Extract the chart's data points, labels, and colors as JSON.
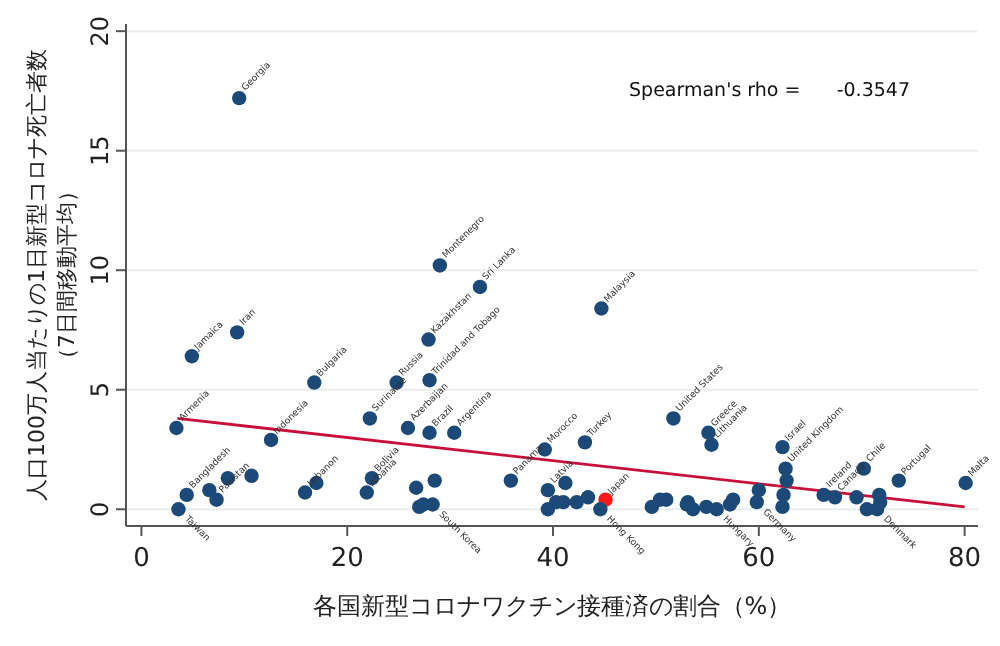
{
  "chart_data": {
    "type": "scatter",
    "xlabel": "各国新型コロナワクチン接種済の割合（%）",
    "ylabel": "人口100万人当たりの1日新型コロナ死亡者数（7日間移動平均）",
    "xlim": [
      -1.5,
      81.3
    ],
    "ylim": [
      -0.7,
      20.3
    ],
    "xticks": [
      0,
      20,
      40,
      60,
      80
    ],
    "yticks": [
      0,
      5,
      10,
      15,
      20
    ],
    "grid": "y",
    "annotations": [
      "Spearman's rho =      -0.3547",
      {
        "text": "Georgia",
        "x": 9.5,
        "y": 17.25
      },
      {
        "text": "Montenegro",
        "x": 29.0,
        "y": 10.25
      },
      {
        "text": "Sri Lanka",
        "x": 32.9,
        "y": 9.33
      },
      {
        "text": "Iran",
        "x": 9.3,
        "y": 7.44
      },
      {
        "text": "Jamaica",
        "x": 4.9,
        "y": 6.39
      },
      {
        "text": "Malaysia",
        "x": 44.7,
        "y": 8.39
      },
      {
        "text": "Kazakhstan",
        "x": 27.9,
        "y": 7.08
      },
      {
        "text": "Trinidad and Tobago",
        "x": 28.0,
        "y": 5.36
      },
      {
        "text": "Bulgaria",
        "x": 16.8,
        "y": 5.28
      },
      {
        "text": "Russia",
        "x": 24.8,
        "y": 5.31
      },
      {
        "text": "Suriname",
        "x": 22.2,
        "y": 3.83
      },
      {
        "text": "Armenia",
        "x": 3.4,
        "y": 3.44
      },
      {
        "text": "Indonesia",
        "x": 12.6,
        "y": 2.86
      },
      {
        "text": "Azerbaijan",
        "x": 25.9,
        "y": 3.44
      },
      {
        "text": "Brazil",
        "x": 28.0,
        "y": 3.19
      },
      {
        "text": "Argentina",
        "x": 30.4,
        "y": 3.22
      },
      {
        "text": "Taiwan",
        "x": 3.6,
        "y": 0.0
      },
      {
        "text": "Bangladesh",
        "x": 4.4,
        "y": 0.61
      },
      {
        "text": "Pakistan",
        "x": 7.3,
        "y": 0.42
      },
      {
        "text": "Lebanon",
        "x": 15.9,
        "y": 0.69
      },
      {
        "text": "Bolivia",
        "x": 22.4,
        "y": 1.31
      },
      {
        "text": "Albania",
        "x": 21.9,
        "y": 0.69
      },
      {
        "text": "South Korea",
        "x": 28.3,
        "y": 0.19
      },
      {
        "text": "Panama",
        "x": 35.9,
        "y": 1.19
      },
      {
        "text": "Morocco",
        "x": 39.2,
        "y": 2.5
      },
      {
        "text": "Turkey",
        "x": 43.1,
        "y": 2.78
      },
      {
        "text": "Latvia",
        "x": 39.5,
        "y": 0.83
      },
      {
        "text": "Japan",
        "x": 45.1,
        "y": 0.36
      },
      {
        "text": "Hong Kong",
        "x": 44.6,
        "y": 0.0
      },
      {
        "text": "United States",
        "x": 51.7,
        "y": 3.83
      },
      {
        "text": "Greece",
        "x": 55.1,
        "y": 3.19
      },
      {
        "text": "Lithuania",
        "x": 55.4,
        "y": 2.72
      },
      {
        "text": "Hungary",
        "x": 55.9,
        "y": 0.0
      },
      {
        "text": "Germany",
        "x": 59.8,
        "y": 0.28
      },
      {
        "text": "Israel",
        "x": 62.3,
        "y": 2.58
      },
      {
        "text": "United Kingdom",
        "x": 62.6,
        "y": 1.72
      },
      {
        "text": "Ireland",
        "x": 66.3,
        "y": 0.64
      },
      {
        "text": "Canada",
        "x": 67.4,
        "y": 0.5
      },
      {
        "text": "Chile",
        "x": 70.2,
        "y": 1.72
      },
      {
        "text": "Denmark",
        "x": 71.5,
        "y": 0.0
      },
      {
        "text": "Portugal",
        "x": 73.6,
        "y": 1.17
      },
      {
        "text": "Malta",
        "x": 80.1,
        "y": 1.11
      }
    ],
    "series": [
      {
        "marker": "circle",
        "x": [
          9.5,
          29.0,
          32.9,
          9.3,
          4.9,
          44.7,
          27.9,
          28.0,
          16.8,
          24.8,
          22.2,
          3.4,
          12.6,
          25.9,
          28.0,
          30.4,
          3.6,
          4.4,
          6.6,
          7.3,
          8.4,
          10.7,
          15.9,
          17.0,
          22.4,
          21.9,
          26.7,
          27.0,
          28.5,
          27.4,
          28.3,
          35.9,
          39.2,
          43.1,
          39.5,
          39.5,
          40.3,
          41.0,
          41.2,
          42.3,
          43.4,
          45.1,
          44.6,
          49.6,
          50.4,
          51.0,
          51.7,
          53.1,
          53.6,
          53.0,
          54.9,
          55.9,
          57.2,
          57.5,
          60.0,
          59.8,
          55.1,
          55.4,
          62.3,
          62.6,
          62.7,
          62.4,
          62.3,
          66.3,
          67.4,
          70.2,
          69.5,
          71.7,
          71.8,
          70.5,
          71.5,
          73.6,
          80.1
        ],
        "values": [
          17.2,
          10.2,
          9.3,
          7.4,
          6.4,
          8.4,
          7.1,
          5.4,
          5.3,
          5.3,
          3.8,
          3.4,
          2.9,
          3.4,
          3.2,
          3.2,
          0.0,
          0.6,
          0.8,
          0.4,
          1.3,
          1.4,
          0.7,
          1.1,
          1.3,
          0.7,
          0.9,
          0.1,
          1.2,
          0.2,
          0.2,
          1.2,
          2.5,
          2.8,
          0.8,
          0.0,
          0.3,
          0.3,
          1.1,
          0.3,
          0.5,
          0.4,
          0.0,
          0.1,
          0.4,
          0.4,
          3.8,
          0.3,
          0.0,
          0.2,
          0.1,
          0.0,
          0.2,
          0.4,
          0.8,
          0.3,
          3.2,
          2.7,
          2.6,
          1.7,
          1.2,
          0.6,
          0.1,
          0.6,
          0.5,
          1.7,
          0.5,
          0.6,
          0.3,
          0.0,
          0.0,
          1.2,
          1.1
        ],
        "colors": [
          "#1b4a78",
          "#1b4a78",
          "#1b4a78",
          "#1b4a78",
          "#1b4a78",
          "#1b4a78",
          "#1b4a78",
          "#1b4a78",
          "#1b4a78",
          "#1b4a78",
          "#1b4a78",
          "#1b4a78",
          "#1b4a78",
          "#1b4a78",
          "#1b4a78",
          "#1b4a78",
          "#1b4a78",
          "#1b4a78",
          "#1b4a78",
          "#1b4a78",
          "#1b4a78",
          "#1b4a78",
          "#1b4a78",
          "#1b4a78",
          "#1b4a78",
          "#1b4a78",
          "#1b4a78",
          "#1b4a78",
          "#1b4a78",
          "#1b4a78",
          "#1b4a78",
          "#1b4a78",
          "#1b4a78",
          "#1b4a78",
          "#1b4a78",
          "#1b4a78",
          "#1b4a78",
          "#1b4a78",
          "#1b4a78",
          "#1b4a78",
          "#1b4a78",
          "#ff1a1a",
          "#1b4a78",
          "#1b4a78",
          "#1b4a78",
          "#1b4a78",
          "#1b4a78",
          "#1b4a78",
          "#1b4a78",
          "#1b4a78",
          "#1b4a78",
          "#1b4a78",
          "#1b4a78",
          "#1b4a78",
          "#1b4a78",
          "#1b4a78",
          "#1b4a78",
          "#1b4a78",
          "#1b4a78",
          "#1b4a78",
          "#1b4a78",
          "#1b4a78",
          "#1b4a78",
          "#1b4a78",
          "#1b4a78",
          "#1b4a78",
          "#1b4a78",
          "#1b4a78",
          "#1b4a78",
          "#1b4a78",
          "#1b4a78",
          "#1b4a78",
          "#1b4a78"
        ]
      },
      {
        "type": "line",
        "color": "#c8103a",
        "x": [
          3.5,
          80
        ],
        "values": [
          3.8,
          0.1
        ]
      }
    ]
  }
}
